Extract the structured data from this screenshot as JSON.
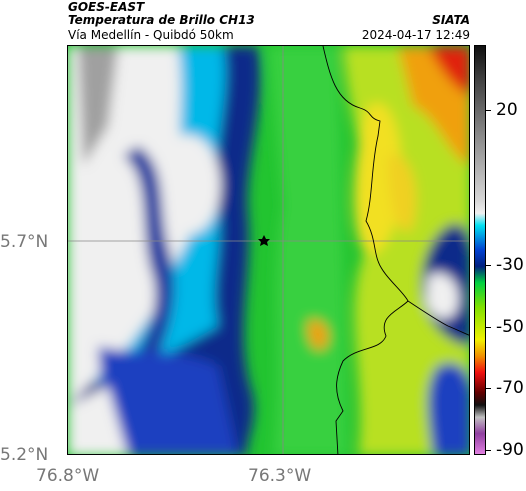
{
  "header": {
    "satellite": "GOES-EAST",
    "product": "Temperatura de Brillo CH13",
    "region": "Vía Medellín - Quibdó 50km",
    "agency": "SIATA",
    "datetime": "2024-04-17 12:49"
  },
  "axes": {
    "lat_ticks": [
      "5.7°N",
      "5.2°N"
    ],
    "lon_ticks": [
      "76.8°W",
      "76.3°W"
    ]
  },
  "colorbar": {
    "labels": [
      "20",
      "-30",
      "-50",
      "-70",
      "-90"
    ]
  },
  "colors": {
    "warm_white": "#f2f2f2",
    "gray": "#9a9a9a",
    "cyan": "#00d8f0",
    "deep_blue": "#0a2a8a",
    "green": "#22c430",
    "yellow": "#f0e020",
    "orange": "#f08a00",
    "red": "#e01010"
  }
}
